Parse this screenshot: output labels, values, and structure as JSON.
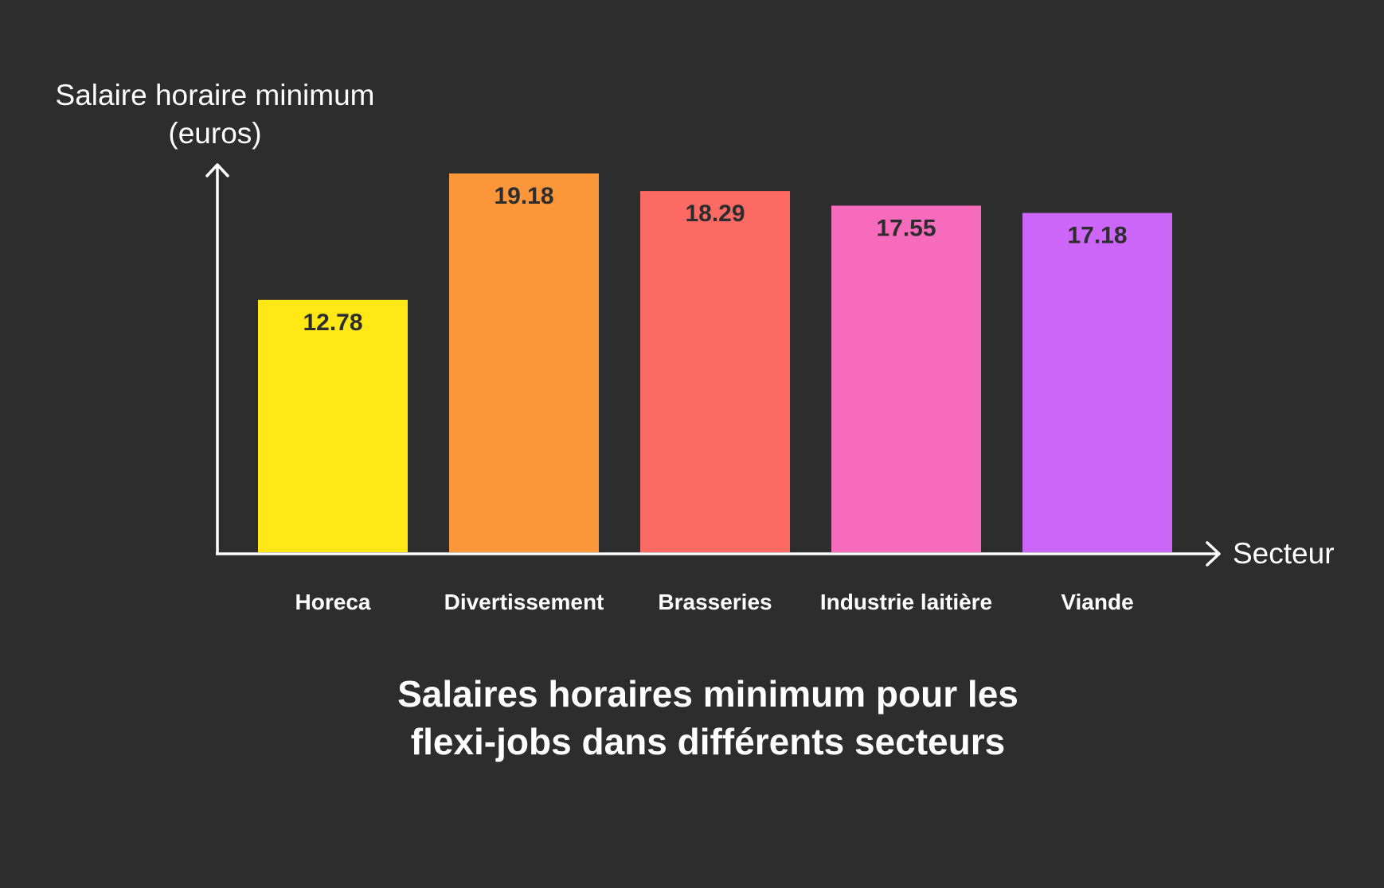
{
  "chart_data": {
    "type": "bar",
    "title": "Salaires horaires minimum pour les flexi-jobs dans différents secteurs",
    "xlabel": "Secteur",
    "ylabel": "Salaire horaire minimum (euros)",
    "categories": [
      "Horeca",
      "Divertissement",
      "Brasseries",
      "Industrie laitière",
      "Viande"
    ],
    "values": [
      12.78,
      19.18,
      18.29,
      17.55,
      17.18
    ],
    "data_labels": [
      "12.78",
      "19.18",
      "18.29",
      "17.55",
      "17.18"
    ],
    "colors": [
      "#ffe816",
      "#fb963a",
      "#fd6963",
      "#f76bbd",
      "#cc66f8"
    ],
    "ylim": [
      0,
      19.18
    ],
    "grid": false,
    "legend": "none"
  },
  "style": {
    "background": "#2d2d2d",
    "axis_color": "#ffffff",
    "label_color": "#ffffff",
    "value_label_color": "#2d2d2d"
  }
}
